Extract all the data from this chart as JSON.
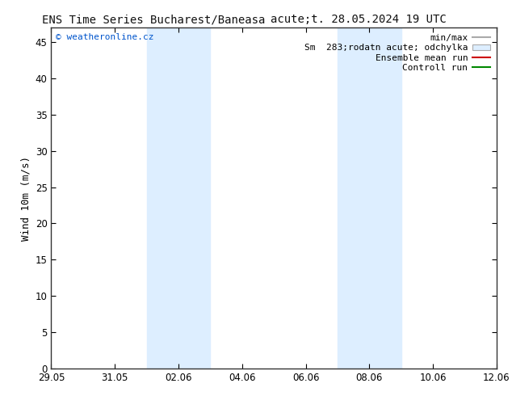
{
  "title_left": "ENS Time Series Bucharest/Baneasa",
  "title_right": "acute;t. 28.05.2024 19 UTC",
  "ylabel": "Wind 10m (m/s)",
  "watermark": "© weatheronline.cz",
  "watermark_color": "#0055cc",
  "background_color": "#ffffff",
  "plot_bg_color": "#ffffff",
  "ylim": [
    0,
    47
  ],
  "yticks": [
    0,
    5,
    10,
    15,
    20,
    25,
    30,
    35,
    40,
    45
  ],
  "x_start": 0,
  "x_end": 14,
  "xtick_positions": [
    0,
    2,
    4,
    6,
    8,
    10,
    12,
    14
  ],
  "xtick_labels": [
    "29.05",
    "31.05",
    "02.06",
    "04.06",
    "06.06",
    "08.06",
    "10.06",
    "12.06"
  ],
  "shade_bands": [
    [
      3.0,
      4.0
    ],
    [
      4.0,
      5.0
    ],
    [
      9.0,
      10.0
    ],
    [
      10.0,
      11.0
    ]
  ],
  "shade_color": "#ddeeff",
  "legend_entries": [
    {
      "label": "min/max",
      "type": "hline",
      "color": "#aaaaaa"
    },
    {
      "label": "Sm  283;rodatn acute; odchylka",
      "type": "box",
      "facecolor": "#ddeeff",
      "edgecolor": "#aaaaaa"
    },
    {
      "label": "Ensemble mean run",
      "type": "line",
      "color": "#cc0000"
    },
    {
      "label": "Controll run",
      "type": "line",
      "color": "#008800"
    }
  ],
  "title_fontsize": 10,
  "axis_fontsize": 9,
  "tick_fontsize": 8.5,
  "legend_fontsize": 8,
  "ylabel_fontsize": 9
}
